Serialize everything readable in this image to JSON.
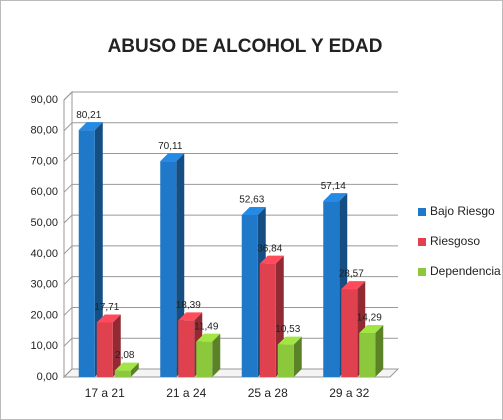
{
  "chart_data": {
    "type": "bar",
    "title": "ABUSO DE ALCOHOL Y EDAD",
    "categories": [
      "17 a 21",
      "21 a 24",
      "25 a 28",
      "29 a 32"
    ],
    "series": [
      {
        "name": "Bajo Riesgo",
        "color": "#1f78c8",
        "values": [
          80.21,
          70.11,
          52.63,
          57.14
        ],
        "value_labels": [
          "80,21",
          "70,11",
          "52,63",
          "57,14"
        ]
      },
      {
        "name": "Riesgoso",
        "color": "#e0414f",
        "values": [
          17.71,
          18.39,
          36.84,
          28.57
        ],
        "value_labels": [
          "17,71",
          "18,39",
          "36,84",
          "28,57"
        ]
      },
      {
        "name": "Dependencia",
        "color": "#8cc83c",
        "values": [
          2.08,
          11.49,
          10.53,
          14.29
        ],
        "value_labels": [
          "2,08",
          "11,49",
          "10,53",
          "14,29"
        ]
      }
    ],
    "ylim": [
      0,
      90
    ],
    "yticks": [
      {
        "value": 0,
        "label": "0,00"
      },
      {
        "value": 10,
        "label": "10,00"
      },
      {
        "value": 20,
        "label": "20,00"
      },
      {
        "value": 30,
        "label": "30,00"
      },
      {
        "value": 40,
        "label": "40,00"
      },
      {
        "value": 50,
        "label": "50,00"
      },
      {
        "value": 60,
        "label": "60,00"
      },
      {
        "value": 70,
        "label": "70,00"
      },
      {
        "value": 80,
        "label": "80,00"
      },
      {
        "value": 90,
        "label": "90,00"
      }
    ],
    "grid": true,
    "legend": "right"
  }
}
